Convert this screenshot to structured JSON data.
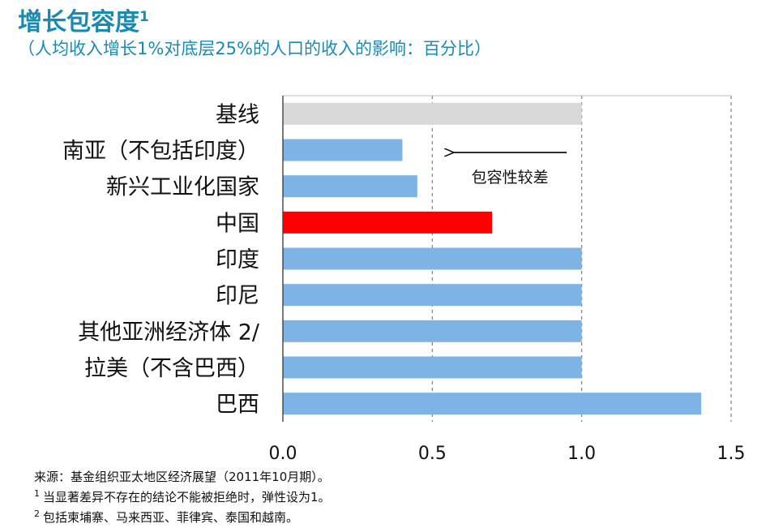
{
  "header": {
    "title": "增长包容度",
    "title_sup": "1",
    "subtitle": "（人均收入增长1%对底层25%的人口的收入的影响：百分比）"
  },
  "chart_data": {
    "type": "bar",
    "orientation": "horizontal",
    "categories": [
      "基线",
      "南亚（不包括印度）",
      "新兴工业化国家",
      "中国",
      "印度",
      "印尼",
      "其他亚洲经济体 2/",
      "拉美（不含巴西）",
      "巴西"
    ],
    "values": [
      1.0,
      0.4,
      0.45,
      0.7,
      1.0,
      1.0,
      1.0,
      1.0,
      1.4
    ],
    "colors": [
      "#d9d9d9",
      "#7eb3e5",
      "#7eb3e5",
      "#ff0000",
      "#7eb3e5",
      "#7eb3e5",
      "#7eb3e5",
      "#7eb3e5",
      "#7eb3e5"
    ],
    "xlim": [
      0,
      1.5
    ],
    "xticks": [
      "0.0",
      "0.5",
      "1.0",
      "1.5"
    ],
    "grid": "vertical-dashed",
    "annotation": {
      "text": "包容性较差",
      "arrow_direction": "left",
      "arrow_from_x": 0.95,
      "arrow_to_x": 0.57
    }
  },
  "footnotes": {
    "source": "来源：基金组织亚太地区经济展望（2011年10月期）。",
    "note1_mark": "1",
    "note1": "当显著差异不存在的结论不能被拒绝时，弹性设为1。",
    "note2_mark": "2",
    "note2": "包括柬埔寨、马来西亚、菲律宾、泰国和越南。"
  }
}
